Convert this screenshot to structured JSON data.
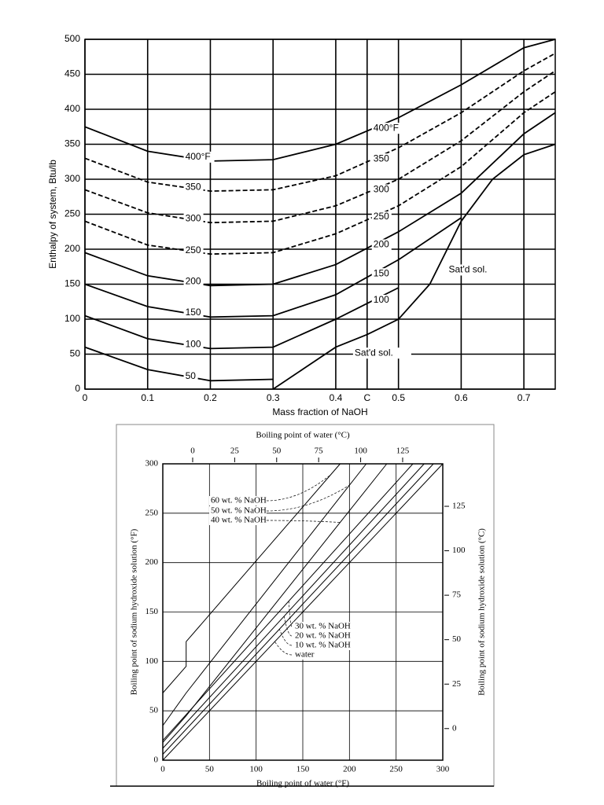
{
  "chart_data": [
    {
      "type": "line",
      "xlabel": "Mass fraction of NaOH",
      "ylabel": "Enthalpy of system, Btu/lb",
      "xlim": [
        0,
        0.75
      ],
      "ylim": [
        0,
        500
      ],
      "xticks": [
        0,
        0.1,
        0.2,
        0.3,
        0.4,
        {
          "value": 0.45,
          "label": "C"
        },
        0.5,
        0.6,
        0.7
      ],
      "yticks": [
        0,
        50,
        100,
        150,
        200,
        250,
        300,
        350,
        400,
        450,
        500
      ],
      "grid": true,
      "x": [
        0,
        0.1,
        0.2,
        0.3,
        0.4,
        0.5,
        0.6,
        0.7,
        0.75
      ],
      "series": [
        {
          "name": "50",
          "color": "#000000",
          "values": [
            60,
            28,
            12,
            14,
            null,
            null,
            null,
            null,
            null
          ]
        },
        {
          "name": "100",
          "color": "#000000",
          "values": [
            105,
            72,
            58,
            60,
            100,
            145,
            null,
            null,
            null
          ]
        },
        {
          "name": "150",
          "color": "#000000",
          "values": [
            150,
            118,
            103,
            105,
            135,
            185,
            245,
            null,
            null
          ]
        },
        {
          "name": "200",
          "color": "#000000",
          "values": [
            195,
            162,
            148,
            150,
            178,
            225,
            280,
            365,
            395
          ]
        },
        {
          "name": "250",
          "color": "#000000",
          "dashed": true,
          "values": [
            240,
            206,
            193,
            195,
            222,
            262,
            318,
            395,
            425
          ]
        },
        {
          "name": "300",
          "color": "#000000",
          "dashed": true,
          "values": [
            285,
            252,
            238,
            240,
            262,
            300,
            355,
            425,
            455
          ]
        },
        {
          "name": "350",
          "color": "#000000",
          "dashed": true,
          "values": [
            330,
            296,
            283,
            285,
            305,
            345,
            395,
            455,
            480
          ]
        },
        {
          "name": "400°F",
          "color": "#000000",
          "values": [
            375,
            340,
            326,
            328,
            350,
            388,
            435,
            488,
            500
          ]
        },
        {
          "name": "Sat'd sol.",
          "color": "#000000",
          "x": [
            0.3,
            0.35,
            0.4,
            0.45,
            0.5,
            0.55,
            0.6,
            0.65,
            0.7,
            0.75
          ],
          "values": [
            0,
            30,
            60,
            78,
            100,
            150,
            240,
            300,
            335,
            350
          ]
        }
      ]
    },
    {
      "type": "line",
      "xlabel": "Boiling point of water (°F)",
      "ylabel": "Boiling point of sodium hydroxide solution (°F)",
      "x2label": "Boiling point of water (°C)",
      "y2label": "Boiling point of sodium hydroxide solution (°C)",
      "xlim": [
        0,
        300
      ],
      "ylim": [
        0,
        300
      ],
      "xticks": [
        0,
        50,
        100,
        150,
        200,
        250,
        300
      ],
      "yticks": [
        0,
        50,
        100,
        150,
        200,
        250,
        300
      ],
      "x2lim": [
        -17.78,
        148.89
      ],
      "x2ticks": [
        0,
        25,
        50,
        75,
        100,
        125
      ],
      "y2lim": [
        -17.78,
        148.89
      ],
      "y2ticks": [
        0,
        25,
        50,
        75,
        100,
        125
      ],
      "grid": true,
      "series": [
        {
          "name": "water",
          "color": "#000000",
          "x": [
            0,
            300
          ],
          "values": [
            0,
            300
          ]
        },
        {
          "name": "10 wt. % NaOH",
          "color": "#000000",
          "x": [
            0,
            290
          ],
          "values": [
            6,
            300
          ]
        },
        {
          "name": "20 wt. % NaOH",
          "color": "#000000",
          "x": [
            0,
            280
          ],
          "values": [
            12,
            300
          ]
        },
        {
          "name": "30 wt. % NaOH",
          "color": "#000000",
          "x": [
            0,
            268
          ],
          "values": [
            20,
            300
          ]
        },
        {
          "name": "40 wt. % NaOH",
          "color": "#000000",
          "x": [
            0,
            25,
            240
          ],
          "values": [
            18,
            45,
            300
          ]
        },
        {
          "name": "50 wt. % NaOH",
          "color": "#000000",
          "x": [
            0,
            25,
            218
          ],
          "values": [
            35,
            68,
            300
          ]
        },
        {
          "name": "60 wt. % NaOH",
          "color": "#000000",
          "x": [
            0,
            25,
            25,
            190
          ],
          "values": [
            68,
            95,
            120,
            300
          ]
        }
      ]
    }
  ]
}
